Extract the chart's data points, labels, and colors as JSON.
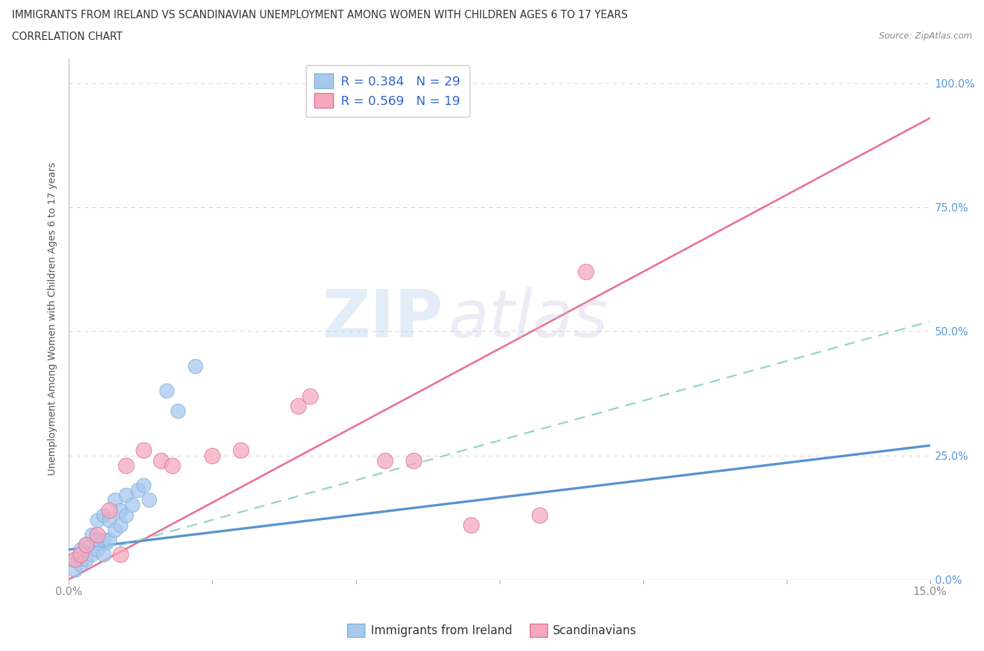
{
  "title": "IMMIGRANTS FROM IRELAND VS SCANDINAVIAN UNEMPLOYMENT AMONG WOMEN WITH CHILDREN AGES 6 TO 17 YEARS",
  "subtitle": "CORRELATION CHART",
  "source": "Source: ZipAtlas.com",
  "ylabel_label": "Unemployment Among Women with Children Ages 6 to 17 years",
  "xlim": [
    0.0,
    0.15
  ],
  "ylim": [
    0.0,
    1.05
  ],
  "x_ticks": [
    0.0,
    0.025,
    0.05,
    0.075,
    0.1,
    0.125,
    0.15
  ],
  "y_ticks": [
    0.0,
    0.25,
    0.5,
    0.75,
    1.0
  ],
  "y_tick_labels": [
    "0.0%",
    "25.0%",
    "50.0%",
    "75.0%",
    "100.0%"
  ],
  "ireland_color": "#a8c8f0",
  "ireland_edge": "#7bafd4",
  "scandinavian_color": "#f5a8c0",
  "scandinavian_edge": "#e07090",
  "ireland_R": "0.384",
  "ireland_N": "29",
  "scandinavian_R": "0.569",
  "scandinavian_N": "19",
  "grid_color": "#cccccc",
  "bg_color": "#ffffff",
  "title_color": "#333333",
  "axis_label_color": "#555555",
  "tick_color": "#888888",
  "ireland_scatter_x": [
    0.001,
    0.001,
    0.002,
    0.002,
    0.003,
    0.003,
    0.004,
    0.004,
    0.005,
    0.005,
    0.005,
    0.006,
    0.006,
    0.006,
    0.007,
    0.007,
    0.008,
    0.008,
    0.009,
    0.009,
    0.01,
    0.01,
    0.011,
    0.012,
    0.013,
    0.014,
    0.017,
    0.019,
    0.022
  ],
  "ireland_scatter_y": [
    0.02,
    0.04,
    0.03,
    0.06,
    0.04,
    0.07,
    0.05,
    0.09,
    0.06,
    0.08,
    0.12,
    0.05,
    0.08,
    0.13,
    0.08,
    0.12,
    0.1,
    0.16,
    0.11,
    0.14,
    0.13,
    0.17,
    0.15,
    0.18,
    0.19,
    0.16,
    0.38,
    0.34,
    0.43
  ],
  "scandinavian_scatter_x": [
    0.001,
    0.002,
    0.003,
    0.005,
    0.007,
    0.009,
    0.01,
    0.013,
    0.016,
    0.018,
    0.025,
    0.03,
    0.04,
    0.042,
    0.055,
    0.06,
    0.07,
    0.082,
    0.09
  ],
  "scandinavian_scatter_y": [
    0.04,
    0.05,
    0.07,
    0.09,
    0.14,
    0.05,
    0.23,
    0.26,
    0.24,
    0.23,
    0.25,
    0.26,
    0.35,
    0.37,
    0.24,
    0.24,
    0.11,
    0.13,
    0.62
  ],
  "ireland_trend_color": "#4488cc",
  "scandinavian_trend_color": "#e85880",
  "ireland_trend_x": [
    0.0,
    0.15
  ],
  "ireland_trend_y": [
    0.06,
    0.27
  ],
  "scandinavian_trend_x": [
    0.0,
    0.15
  ],
  "scandinavian_trend_y": [
    0.0,
    0.93
  ],
  "ireland_dash_trend_x": [
    0.0,
    0.15
  ],
  "ireland_dash_trend_y": [
    0.04,
    0.52
  ]
}
